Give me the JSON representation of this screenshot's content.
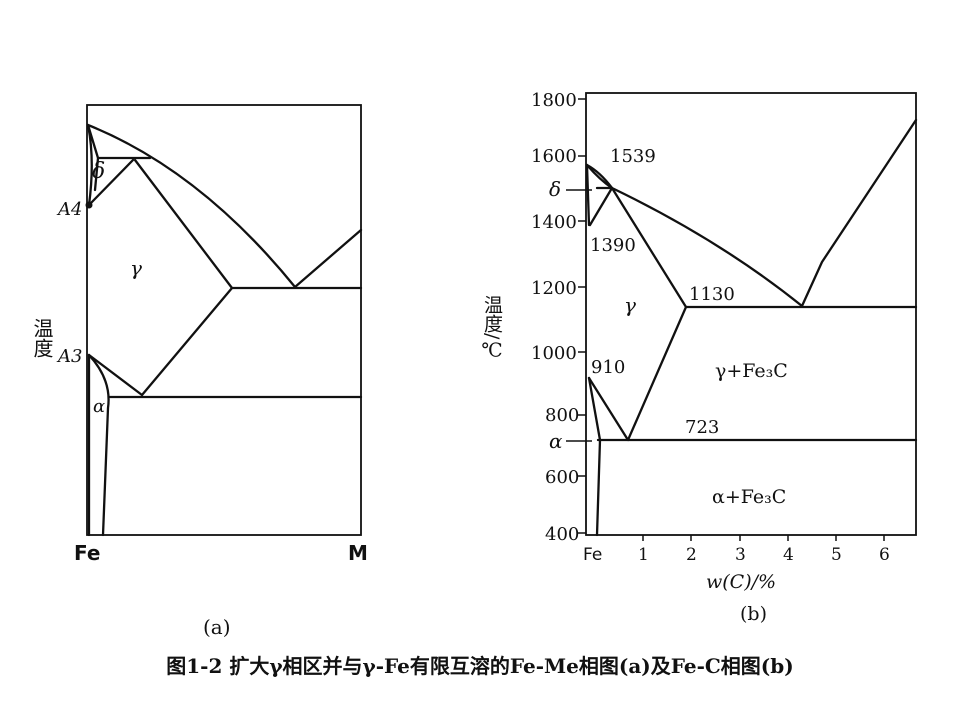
{
  "diagram_a": {
    "label_temperature": "温度",
    "label_delta": "δ",
    "label_A4": "A4",
    "label_gamma": "γ",
    "label_A3": "A3",
    "label_alpha": "α",
    "label_fe": "Fe",
    "label_m": "M",
    "sublabel": "(a)"
  },
  "diagram_b": {
    "y_ticks": [
      "1800",
      "1600",
      "1400",
      "1200",
      "1000",
      "800",
      "600",
      "400"
    ],
    "x_ticks": [
      "Fe",
      "1",
      "2",
      "3",
      "4",
      "5",
      "6"
    ],
    "ylabel": "温度/℃",
    "xlabel": "w(C)/%",
    "label_delta": "δ",
    "label_alpha": "α",
    "label_gamma": "γ",
    "val_1539": "1539",
    "val_1390": "1390",
    "val_1130": "1130",
    "val_910": "910",
    "val_723": "723",
    "region_gamma_fe3c": "γ+Fe₃C",
    "region_alpha_fe3c": "α+Fe₃C",
    "sublabel": "(b)"
  },
  "caption": "图1-2 扩大γ相区并与γ-Fe有限互溶的Fe-Me相图(a)及Fe-C相图(b)"
}
